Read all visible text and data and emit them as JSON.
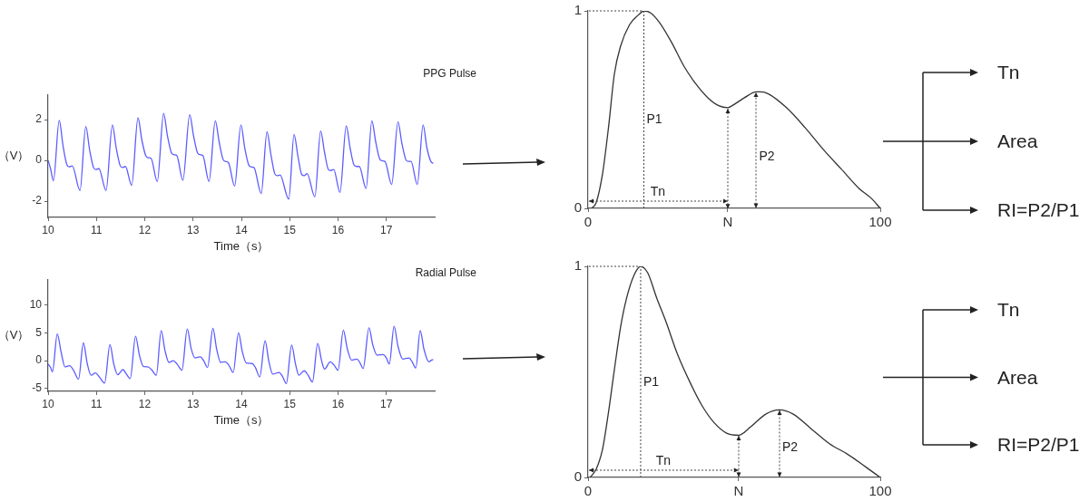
{
  "chart_data": [
    {
      "type": "line",
      "title": "PPG Pulse",
      "xlabel": "Time（s）",
      "ylabel": "（V）",
      "xlim": [
        10,
        18
      ],
      "ylim": [
        -2.8,
        3.2
      ],
      "xticks": [
        10,
        11,
        12,
        13,
        14,
        15,
        16,
        17
      ],
      "yticks": [
        -2,
        0,
        2
      ],
      "grid": false,
      "legend": false,
      "series": [
        {
          "color": "#5c5cff",
          "x": [
            10.0,
            10.05,
            10.11,
            10.23,
            10.31,
            10.39,
            10.44,
            10.5,
            10.66,
            10.78,
            10.86,
            10.94,
            10.99,
            11.05,
            11.2,
            11.33,
            11.41,
            11.49,
            11.54,
            11.6,
            11.73,
            11.86,
            11.94,
            12.02,
            12.07,
            12.13,
            12.26,
            12.39,
            12.47,
            12.55,
            12.6,
            12.66,
            12.79,
            12.93,
            13.01,
            13.09,
            13.14,
            13.2,
            13.33,
            13.46,
            13.54,
            13.62,
            13.67,
            13.73,
            13.86,
            13.99,
            14.07,
            14.15,
            14.2,
            14.26,
            14.41,
            14.53,
            14.61,
            14.69,
            14.74,
            14.8,
            14.98,
            15.09,
            15.17,
            15.25,
            15.3,
            15.36,
            15.52,
            15.64,
            15.72,
            15.8,
            15.85,
            15.91,
            16.04,
            16.17,
            16.25,
            16.33,
            16.38,
            16.44,
            16.58,
            16.7,
            16.78,
            16.86,
            16.91,
            16.97,
            17.11,
            17.24,
            17.32,
            17.4,
            17.45,
            17.51,
            17.64,
            17.76,
            17.84,
            17.92,
            17.97
          ],
          "values": [
            0.0,
            -0.4,
            -1.0,
            1.96,
            0.7,
            -0.22,
            -0.32,
            -0.27,
            -1.48,
            1.66,
            0.5,
            -0.35,
            -0.45,
            -0.4,
            -1.48,
            1.74,
            0.6,
            -0.25,
            -0.35,
            -0.3,
            -1.23,
            2.09,
            1.0,
            0.23,
            0.13,
            0.1,
            -1.04,
            2.3,
            1.2,
            0.38,
            0.28,
            0.25,
            -0.98,
            2.24,
            1.2,
            0.38,
            0.28,
            0.25,
            -1.04,
            1.94,
            0.9,
            0.05,
            -0.05,
            -0.1,
            -1.26,
            1.74,
            0.6,
            -0.22,
            -0.32,
            -0.35,
            -1.63,
            1.4,
            0.3,
            -0.65,
            -0.75,
            -0.72,
            -1.9,
            1.27,
            0.2,
            -0.7,
            -0.75,
            -0.65,
            -1.79,
            1.44,
            0.4,
            -0.45,
            -0.5,
            -0.45,
            -1.57,
            1.69,
            0.6,
            -0.22,
            -0.3,
            -0.3,
            -1.38,
            1.94,
            0.9,
            0.08,
            -0.02,
            -0.05,
            -1.18,
            1.88,
            0.85,
            0.05,
            -0.05,
            -0.05,
            -1.18,
            1.74,
            0.6,
            -0.05,
            -0.15
          ]
        }
      ]
    },
    {
      "type": "line",
      "xlim": [
        0,
        100
      ],
      "ylim": [
        0,
        1
      ],
      "xticks": [
        0,
        {
          "value": 47.8,
          "label": "N"
        },
        100
      ],
      "yticks": [
        0,
        1
      ],
      "grid": false,
      "legend": false,
      "series": [
        {
          "color": "#333333",
          "x": [
            1.2,
            2.8,
            4.9,
            7.0,
            9.0,
            11.1,
            14.2,
            17.3,
            19.1,
            21.4,
            24.5,
            28.6,
            32.8,
            36.9,
            41.0,
            44.7,
            47.8,
            49.3,
            53.5,
            57.6,
            59.2,
            61.7,
            67.9,
            74.2,
            80.4,
            86.6,
            92.8,
            97.0,
            100
          ],
          "values": [
            0,
            0.03,
            0.17,
            0.41,
            0.68,
            0.82,
            0.93,
            0.98,
            1.0,
            0.99,
            0.94,
            0.84,
            0.72,
            0.63,
            0.56,
            0.52,
            0.51,
            0.52,
            0.56,
            0.59,
            0.59,
            0.58,
            0.51,
            0.41,
            0.3,
            0.2,
            0.1,
            0.05,
            0
          ]
        }
      ],
      "annotations": [
        "Tn",
        "P2",
        "Tn",
        "Area",
        "RI=P2/P1"
      ],
      "ref_lines": [
        {
          "axis": "x",
          "value": 19.1,
          "label": "P1",
          "line_style": "dotted"
        }
      ]
    },
    {
      "type": "line",
      "title": "Radial Pulse",
      "xlabel": "Time（s）",
      "ylabel": "（V）",
      "xlim": [
        10,
        18
      ],
      "ylim": [
        -5.5,
        14.5
      ],
      "xticks": [
        10,
        11,
        12,
        13,
        14,
        15,
        16,
        17
      ],
      "yticks": [
        -5,
        0,
        5,
        10
      ],
      "grid": false,
      "legend": false,
      "series": [
        {
          "color": "#5c5cff",
          "x": [
            10.0,
            10.05,
            10.09,
            10.19,
            10.27,
            10.35,
            10.44,
            10.52,
            10.63,
            10.73,
            10.81,
            10.89,
            10.98,
            11.06,
            11.17,
            11.28,
            11.36,
            11.44,
            11.55,
            11.62,
            11.7,
            11.81,
            11.89,
            11.97,
            12.06,
            12.14,
            12.24,
            12.34,
            12.42,
            12.5,
            12.59,
            12.67,
            12.77,
            12.88,
            12.96,
            13.04,
            13.15,
            13.22,
            13.3,
            13.41,
            13.49,
            13.57,
            13.66,
            13.74,
            13.83,
            13.94,
            14.02,
            14.1,
            14.22,
            14.29,
            14.38,
            14.49,
            14.57,
            14.65,
            14.78,
            14.85,
            14.93,
            15.04,
            15.12,
            15.19,
            15.3,
            15.38,
            15.47,
            15.58,
            15.66,
            15.72,
            15.84,
            15.92,
            16.0,
            16.11,
            16.19,
            16.28,
            16.39,
            16.45,
            16.52,
            16.64,
            16.72,
            16.81,
            16.93,
            17.0,
            17.06,
            17.16,
            17.24,
            17.34,
            17.47,
            17.54,
            17.61,
            17.7,
            17.78,
            17.88,
            17.93,
            17.97
          ],
          "values": [
            -0.6,
            -1.2,
            -2.0,
            4.8,
            1.5,
            -1.1,
            -0.9,
            -1.6,
            -3.3,
            3.2,
            -0.5,
            -2.6,
            -2.2,
            -2.9,
            -4.0,
            2.9,
            -0.6,
            -2.5,
            -1.6,
            -2.4,
            -3.2,
            4.4,
            1.0,
            -1.0,
            -1.1,
            -1.6,
            -2.6,
            5.4,
            1.8,
            -0.3,
            0,
            -0.6,
            -1.7,
            5.7,
            2.2,
            0.5,
            0.7,
            0,
            -1.2,
            5.8,
            2.0,
            -0.3,
            -0.2,
            -0.8,
            -2.1,
            5.0,
            1.6,
            -0.4,
            -0.5,
            -1.2,
            -2.9,
            3.6,
            -0.2,
            -2.4,
            -2.1,
            -2.8,
            -4.1,
            2.8,
            -0.6,
            -2.6,
            -1.8,
            -2.6,
            -3.8,
            3.1,
            0,
            -1.5,
            -0.2,
            -0.8,
            -1.7,
            5.5,
            2.2,
            0.1,
            0.3,
            -0.3,
            -1.4,
            5.9,
            2.8,
            1.0,
            1.1,
            0.5,
            -0.6,
            6.2,
            2.6,
            0.3,
            0.5,
            -0.3,
            -1.3,
            5.4,
            2.0,
            -0.2,
            0.1,
            0.2
          ]
        }
      ]
    },
    {
      "type": "line",
      "xlim": [
        0,
        100
      ],
      "ylim": [
        0,
        1
      ],
      "xticks": [
        0,
        {
          "value": 51.5,
          "label": "N"
        },
        100
      ],
      "yticks": [
        0,
        1
      ],
      "grid": false,
      "legend": false,
      "series": [
        {
          "color": "#333333",
          "x": [
            0.7,
            2.8,
            4.9,
            6.9,
            9.0,
            11.1,
            13.2,
            15.8,
            18.0,
            20.4,
            23.5,
            26.6,
            30.7,
            34.9,
            39.0,
            43.1,
            47.4,
            51.5,
            55.7,
            60.8,
            65.5,
            70.2,
            76.4,
            82.6,
            88.8,
            95.0,
            100
          ],
          "values": [
            0,
            0.04,
            0.13,
            0.3,
            0.51,
            0.71,
            0.85,
            0.96,
            1.0,
            0.97,
            0.85,
            0.74,
            0.58,
            0.45,
            0.34,
            0.26,
            0.21,
            0.2,
            0.24,
            0.3,
            0.32,
            0.3,
            0.23,
            0.16,
            0.11,
            0.05,
            0
          ]
        }
      ],
      "annotations": [
        "Tn",
        "P2",
        "Tn",
        "Area",
        "RI=P2/P1"
      ],
      "ref_lines": [
        {
          "axis": "x",
          "value": 18.0,
          "label": "P1",
          "line_style": "dotted"
        }
      ]
    }
  ]
}
